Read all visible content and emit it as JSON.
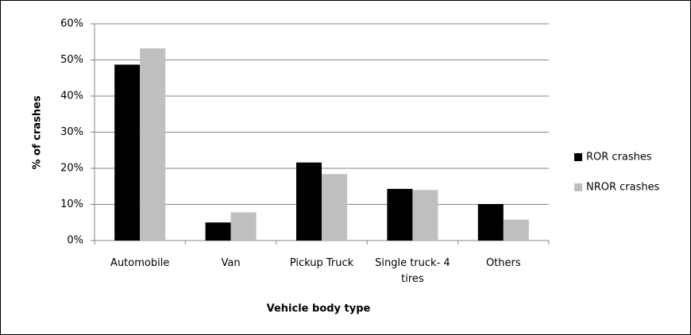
{
  "chart_data": {
    "type": "bar",
    "x_label": "Vehicle body type",
    "y_label": "% of crashes",
    "categories": [
      "Automobile",
      "Van",
      "Pickup Truck",
      "Single truck- 4 tires",
      "Others"
    ],
    "series": [
      {
        "name": "ROR crashes",
        "color": "#000000",
        "values": [
          48.7,
          5.0,
          21.6,
          14.3,
          10.1
        ]
      },
      {
        "name": "NROR crashes",
        "color": "#bfbfbf",
        "values": [
          53.2,
          7.8,
          18.4,
          14.0,
          5.8
        ]
      }
    ],
    "ylim": [
      0,
      60
    ],
    "yticks": [
      {
        "value": 0,
        "label": "0%"
      },
      {
        "value": 10,
        "label": "10%"
      },
      {
        "value": 20,
        "label": "20%"
      },
      {
        "value": 30,
        "label": "30%"
      },
      {
        "value": 40,
        "label": "40%"
      },
      {
        "value": 50,
        "label": "50%"
      },
      {
        "value": 60,
        "label": "60%"
      }
    ],
    "grid": true,
    "legend": "right"
  }
}
